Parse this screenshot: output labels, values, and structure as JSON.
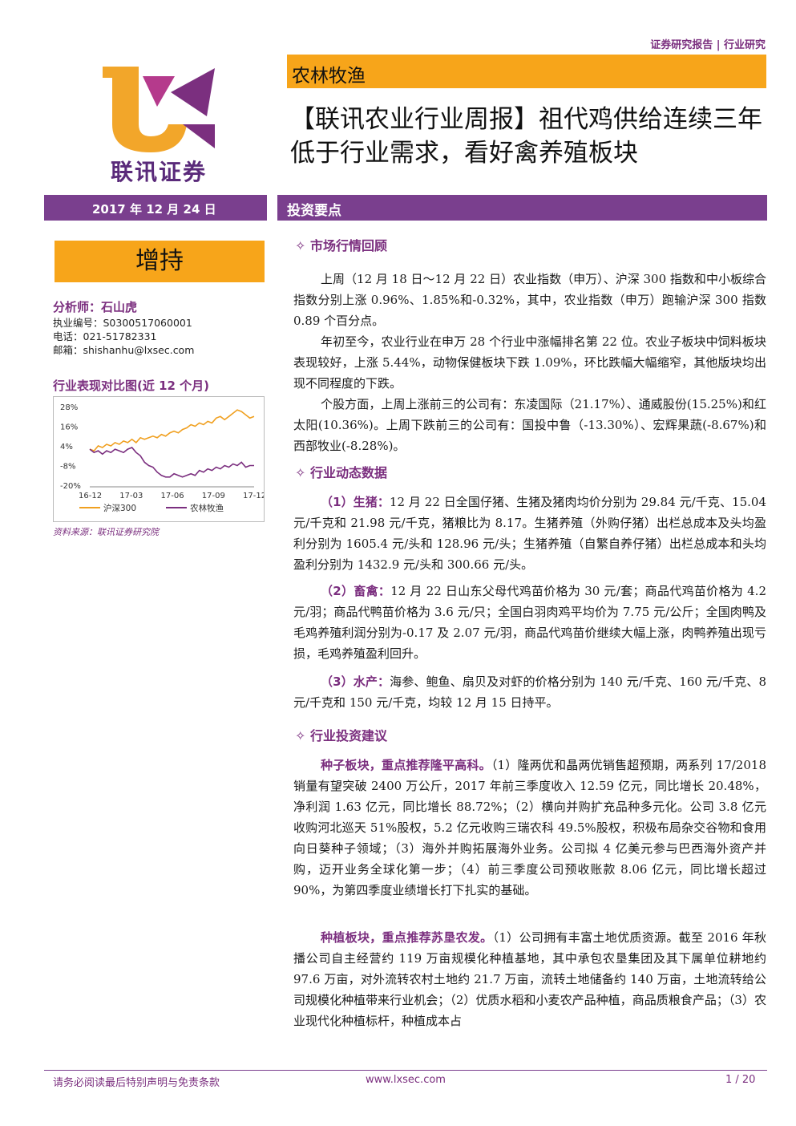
{
  "header": {
    "top_right": "证券研究报告 | 行业研究",
    "logo_text": "联讯证券",
    "industry": "农林牧渔",
    "title": "【联讯农业行业周报】祖代鸡供给连续三年低于行业需求，看好禽养殖板块"
  },
  "sidebar": {
    "date": "2017 年 12 月 24 日",
    "rating": "增持",
    "analyst": "分析师：石山虎",
    "license": "执业编号：S0300517060001",
    "phone": "电话：021-51782331",
    "email": "邮箱：shishanhu@lxsec.com",
    "chart_title": "行业表现对比图(近 12 个月)",
    "source": "资料来源：联讯证券研究院"
  },
  "chart_data": {
    "type": "line",
    "y_ticks": [
      "28%",
      "16%",
      "4%",
      "-8%",
      "-20%"
    ],
    "x_ticks": [
      "16-12",
      "17-03",
      "17-06",
      "17-09",
      "17-12"
    ],
    "ylim": [
      -20,
      28
    ],
    "series": [
      {
        "name": "沪深300",
        "color": "#f0a020",
        "values": [
          2,
          1,
          4,
          3,
          5,
          4,
          6,
          5,
          7,
          6,
          8,
          6,
          9,
          8,
          9,
          10,
          9,
          11,
          10,
          12,
          13,
          12,
          14,
          15,
          17,
          16,
          18,
          17,
          19,
          18,
          21,
          22,
          20,
          22,
          24,
          26,
          25,
          23,
          21,
          22
        ]
      },
      {
        "name": "农林牧渔",
        "color": "#7b2f7f",
        "values": [
          2,
          0,
          1,
          -1,
          1,
          0,
          2,
          1,
          0,
          2,
          3,
          0,
          -2,
          -6,
          -8,
          -9,
          -12,
          -14,
          -15,
          -15,
          -13,
          -14,
          -15,
          -14,
          -13,
          -14,
          -11,
          -12,
          -10,
          -11,
          -9,
          -10,
          -8,
          -9,
          -7,
          -8,
          -6,
          -9,
          -8,
          -8
        ]
      }
    ]
  },
  "main": {
    "invest_title": "投资要点",
    "sec1_title": "✧ 市场行情回顾",
    "p1": "上周（12 月 18 日～12 月 22 日）农业指数（申万）、沪深 300 指数和中小板综合指数分别上涨 0.96%、1.85%和-0.32%，其中，农业指数（申万）跑输沪深 300 指数 0.89 个百分点。",
    "p2": "年初至今，农业行业在申万 28 个行业中涨幅排名第 22 位。农业子板块中饲料板块表现较好，上涨 5.44%，动物保健板块下跌 1.09%，环比跌幅大幅缩窄，其他版块均出现不同程度的下跌。",
    "p3": "个股方面，上周上涨前三的公司有：东凌国际（21.17%）、通威股份(15.25%)和红太阳(10.36%)。上周下跌前三的公司有：国投中鲁（-13.30%）、宏辉果蔬(-8.67%)和西部牧业(-8.28%)。",
    "sec2_title": "✧ 行业动态数据",
    "p4_label": "（1）生猪：",
    "p4": "12 月 22 日全国仔猪、生猪及猪肉均价分别为 29.84 元/千克、15.04 元/千克和 21.98 元/千克，猪粮比为 8.17。生猪养殖（外购仔猪）出栏总成本及头均盈利分别为 1605.4 元/头和 128.96 元/头；生猪养殖（自繁自养仔猪）出栏总成本和头均盈利分别为 1432.9 元/头和 300.66 元/头。",
    "p5_label": "（2）畜禽：",
    "p5": "12 月 22 日山东父母代鸡苗价格为 30 元/套；商品代鸡苗价格为 4.2 元/羽；商品代鸭苗价格为 3.6 元/只；全国白羽肉鸡平均价为 7.75 元/公斤；全国肉鸭及毛鸡养殖利润分别为-0.17 及 2.07 元/羽，商品代鸡苗价继续大幅上涨，肉鸭养殖出现亏损，毛鸡养殖盈利回升。",
    "p6_label": "（3）水产：",
    "p6": "海参、鲍鱼、扇贝及对虾的价格分别为 140 元/千克、160 元/千克、8 元/千克和 150 元/千克，均较 12 月 15 日持平。",
    "sec3_title": "✧ 行业投资建议",
    "p7_label": "种子板块，重点推荐隆平高科。",
    "p7": "（1）隆两优和晶两优销售超预期，两系列 17/2018 销量有望突破 2400 万公斤，2017 年前三季度收入 12.59 亿元，同比增长 20.48%，净利润 1.63 亿元，同比增长 88.72%；（2）横向并购扩充品种多元化。公司 3.8 亿元收购河北巡天 51%股权，5.2 亿元收购三瑞农科 49.5%股权，积极布局杂交谷物和食用向日葵种子领域；（3）海外并购拓展海外业务。公司拟 4 亿美元参与巴西海外资产并购，迈开业务全球化第一步；（4）前三季度公司预收账款 8.06 亿元，同比增长超过 90%，为第四季度业绩增长打下扎实的基础。",
    "p8_label": "种植板块，重点推荐苏垦农发。",
    "p8": "（1）公司拥有丰富土地优质资源。截至 2016 年秋播公司自主经营约 119 万亩规模化种植基地，其中承包农垦集团及其下属单位耕地约 97.6 万亩，对外流转农村土地约 21.7 万亩，流转土地储备约 140 万亩，土地流转给公司规模化种植带来行业机会；（2）优质水稻和小麦农产品种植，商品质粮食产品；（3）农业现代化种植标杆，种植成本占"
  },
  "footer": {
    "left": "请务必阅读最后特别声明与免责条款",
    "center": "www.lxsec.com",
    "right": "1 / 20"
  },
  "colors": {
    "purple": "#7a3f8e",
    "orange": "#f7a51a"
  }
}
